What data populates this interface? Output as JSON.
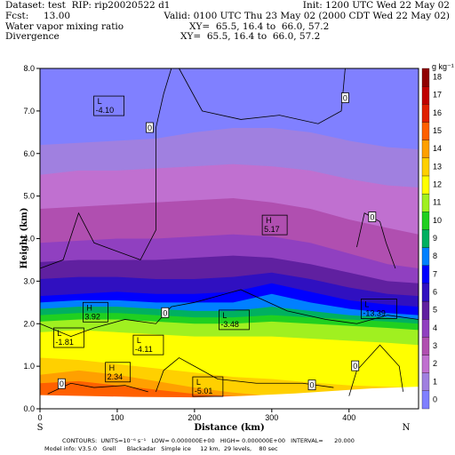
{
  "header": {
    "line1_left": "Dataset: test  RIP: rip20020522 d1",
    "line1_right": "Init: 1200 UTC Wed 22 May 02",
    "line2_left": "Fcst:     13.00",
    "line2_right": "Valid: 0100 UTC Thu 23 May 02 (2000 CDT Wed 22 May 02)",
    "line3_left": "Water vapor mixing ratio",
    "line3_right": "XY=  65.5, 16.4 to  66.0, 57.2",
    "line4_left": "Divergence",
    "line4_right": "XY=  65.5, 16.4 to  66.0, 57.2"
  },
  "chart_data": {
    "type": "heatmap",
    "xlabel": "Distance (km)",
    "ylabel": "Height (km)",
    "xlim": [
      0,
      490
    ],
    "ylim": [
      0,
      8
    ],
    "x_ticks": [
      0,
      100,
      200,
      300,
      400
    ],
    "y_ticks": [
      "0.0",
      "1.0",
      "2.0",
      "3.0",
      "4.0",
      "5.0",
      "6.0",
      "7.0",
      "8.0"
    ],
    "y_tick_values": [
      0,
      1,
      2,
      3,
      4,
      5,
      6,
      7,
      8
    ],
    "endpoints": {
      "left": "S",
      "right": "N"
    },
    "colorbar": {
      "unit": "g kg⁻¹",
      "levels": [
        0,
        1,
        2,
        3,
        4,
        5,
        6,
        7,
        8,
        9,
        10,
        11,
        12,
        13,
        14,
        15,
        16,
        17,
        18
      ],
      "colors": [
        "#8080ff",
        "#a080e0",
        "#c070d0",
        "#b04fb0",
        "#9040c0",
        "#6020a0",
        "#3010c0",
        "#0000ff",
        "#0080ff",
        "#00b060",
        "#20d020",
        "#a0f020",
        "#ffff00",
        "#ffd000",
        "#ffa000",
        "#ff6000",
        "#e02000",
        "#c00000",
        "#900000"
      ]
    },
    "extrema": [
      {
        "type": "L",
        "value": "-4.10",
        "x": 72,
        "y": 7.1
      },
      {
        "type": "H",
        "value": "5.17",
        "x": 290,
        "y": 4.3
      },
      {
        "type": "H",
        "value": "3.92",
        "x": 58,
        "y": 2.25
      },
      {
        "type": "L",
        "value": "-1.81",
        "x": 20,
        "y": 1.65
      },
      {
        "type": "L",
        "value": "-3.48",
        "x": 234,
        "y": 2.07
      },
      {
        "type": "L",
        "value": "-13.39",
        "x": 418,
        "y": 2.33
      },
      {
        "type": "L",
        "value": "-4.11",
        "x": 123,
        "y": 1.48
      },
      {
        "type": "H",
        "value": "2.34",
        "x": 87,
        "y": 0.84
      },
      {
        "type": "L",
        "value": "-5.01",
        "x": 200,
        "y": 0.5
      }
    ],
    "zero_labels": [
      {
        "text": "0",
        "x": 142,
        "y": 6.6
      },
      {
        "text": "0",
        "x": 395,
        "y": 7.3
      },
      {
        "text": "0",
        "x": 430,
        "y": 4.5
      },
      {
        "text": "0",
        "x": 162,
        "y": 2.25
      },
      {
        "text": "0",
        "x": 408,
        "y": 1.0
      },
      {
        "text": "0",
        "x": 28,
        "y": 0.58
      },
      {
        "text": "0",
        "x": 352,
        "y": 0.55
      }
    ]
  },
  "footer": {
    "line1": "CONTOURS:  UNITS=10⁻⁶ s⁻¹   LOW= 0.000000E+00   HIGH= 0.000000E+00   INTERVAL=      20.000",
    "line2": "Model info: V3.5.0   Grell      Blackadar   Simple ice     12 km,  29 levels,    80 sec"
  }
}
